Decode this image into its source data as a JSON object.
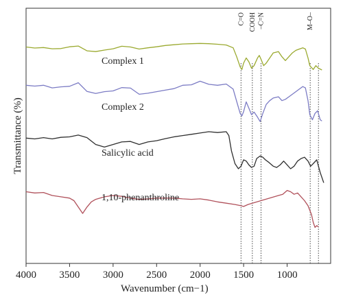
{
  "chart_data": {
    "type": "line",
    "title": "",
    "xlabel": "Wavenumber (cm−1)",
    "ylabel": "Transmittance (%)",
    "xlim": [
      4000,
      500
    ],
    "ylim": [
      0,
      100
    ],
    "x_reversed": true,
    "y_ticks_shown": false,
    "grid": false,
    "x_ticks": [
      {
        "value": 4000,
        "label": "4000"
      },
      {
        "value": 3500,
        "label": "3500"
      },
      {
        "value": 3000,
        "label": "3000"
      },
      {
        "value": 2500,
        "label": "2500"
      },
      {
        "value": 2000,
        "label": "2000"
      },
      {
        "value": 1500,
        "label": "1500"
      },
      {
        "value": 1000,
        "label": "1000"
      }
    ],
    "band_markers": [
      {
        "label": "C=O",
        "x": 1530
      },
      {
        "label": "COOH",
        "x": 1400
      },
      {
        "label": "–C=N",
        "x": 1300
      },
      {
        "label": "M–O–",
        "x": 735
      },
      {
        "label": "",
        "x": 640
      }
    ],
    "series": [
      {
        "name": "Complex 1",
        "color": "#9aa92e",
        "points": [
          [
            4000,
            84.8
          ],
          [
            3900,
            84.4
          ],
          [
            3800,
            84.6
          ],
          [
            3700,
            84.1
          ],
          [
            3600,
            84.2
          ],
          [
            3500,
            84.9
          ],
          [
            3400,
            85.2
          ],
          [
            3300,
            83.3
          ],
          [
            3200,
            83.0
          ],
          [
            3100,
            83.6
          ],
          [
            3000,
            84.1
          ],
          [
            2900,
            85.1
          ],
          [
            2800,
            84.8
          ],
          [
            2700,
            84.0
          ],
          [
            2600,
            84.5
          ],
          [
            2500,
            84.9
          ],
          [
            2400,
            85.4
          ],
          [
            2300,
            85.7
          ],
          [
            2200,
            86.0
          ],
          [
            2100,
            86.1
          ],
          [
            2000,
            86.2
          ],
          [
            1900,
            86.1
          ],
          [
            1800,
            85.9
          ],
          [
            1700,
            85.6
          ],
          [
            1620,
            84.5
          ],
          [
            1580,
            81.0
          ],
          [
            1540,
            77.0
          ],
          [
            1520,
            76.0
          ],
          [
            1500,
            78.5
          ],
          [
            1470,
            80.5
          ],
          [
            1440,
            79.0
          ],
          [
            1410,
            76.5
          ],
          [
            1380,
            77.5
          ],
          [
            1340,
            80.5
          ],
          [
            1320,
            81.5
          ],
          [
            1300,
            80.0
          ],
          [
            1270,
            77.5
          ],
          [
            1240,
            78.5
          ],
          [
            1200,
            80.5
          ],
          [
            1160,
            82.5
          ],
          [
            1100,
            83.0
          ],
          [
            1060,
            81.0
          ],
          [
            1020,
            79.5
          ],
          [
            980,
            81.0
          ],
          [
            940,
            82.5
          ],
          [
            900,
            83.5
          ],
          [
            860,
            84.0
          ],
          [
            820,
            84.5
          ],
          [
            790,
            84.0
          ],
          [
            760,
            80.5
          ],
          [
            740,
            77.5
          ],
          [
            700,
            76.0
          ],
          [
            670,
            77.5
          ],
          [
            640,
            76.5
          ],
          [
            600,
            75.8
          ]
        ]
      },
      {
        "name": "Complex 2",
        "color": "#7b7bc4",
        "points": [
          [
            4000,
            69.8
          ],
          [
            3900,
            69.5
          ],
          [
            3800,
            69.8
          ],
          [
            3700,
            68.8
          ],
          [
            3600,
            69.2
          ],
          [
            3500,
            69.4
          ],
          [
            3400,
            70.8
          ],
          [
            3300,
            67.4
          ],
          [
            3200,
            66.6
          ],
          [
            3100,
            67.3
          ],
          [
            3000,
            67.6
          ],
          [
            2900,
            68.9
          ],
          [
            2800,
            68.7
          ],
          [
            2700,
            66.3
          ],
          [
            2600,
            66.7
          ],
          [
            2500,
            67.3
          ],
          [
            2400,
            67.9
          ],
          [
            2300,
            68.5
          ],
          [
            2200,
            69.8
          ],
          [
            2100,
            70.0
          ],
          [
            2000,
            71.4
          ],
          [
            1900,
            70.2
          ],
          [
            1800,
            69.8
          ],
          [
            1700,
            70.3
          ],
          [
            1620,
            68.3
          ],
          [
            1580,
            63.5
          ],
          [
            1540,
            58.8
          ],
          [
            1520,
            57.8
          ],
          [
            1500,
            59.5
          ],
          [
            1470,
            63.3
          ],
          [
            1440,
            60.8
          ],
          [
            1410,
            58.3
          ],
          [
            1380,
            59.3
          ],
          [
            1340,
            57.3
          ],
          [
            1310,
            55.6
          ],
          [
            1280,
            58.8
          ],
          [
            1240,
            62.3
          ],
          [
            1200,
            63.8
          ],
          [
            1160,
            64.8
          ],
          [
            1100,
            65.3
          ],
          [
            1060,
            63.8
          ],
          [
            1020,
            64.3
          ],
          [
            980,
            65.3
          ],
          [
            940,
            66.3
          ],
          [
            900,
            67.3
          ],
          [
            860,
            68.3
          ],
          [
            820,
            69.3
          ],
          [
            790,
            68.8
          ],
          [
            760,
            63.8
          ],
          [
            740,
            58.3
          ],
          [
            710,
            56.3
          ],
          [
            680,
            58.8
          ],
          [
            650,
            59.8
          ],
          [
            620,
            56.3
          ],
          [
            600,
            55.8
          ]
        ]
      },
      {
        "name": "Salicylic acid",
        "color": "#2e2e2e",
        "points": [
          [
            4000,
            49.1
          ],
          [
            3900,
            48.8
          ],
          [
            3800,
            49.3
          ],
          [
            3700,
            48.8
          ],
          [
            3600,
            49.4
          ],
          [
            3500,
            49.6
          ],
          [
            3400,
            50.3
          ],
          [
            3300,
            49.3
          ],
          [
            3200,
            46.6
          ],
          [
            3100,
            45.6
          ],
          [
            3000,
            46.6
          ],
          [
            2900,
            47.6
          ],
          [
            2800,
            47.8
          ],
          [
            2700,
            46.6
          ],
          [
            2600,
            47.6
          ],
          [
            2500,
            48.1
          ],
          [
            2400,
            48.9
          ],
          [
            2300,
            49.6
          ],
          [
            2200,
            50.1
          ],
          [
            2100,
            50.6
          ],
          [
            2000,
            51.1
          ],
          [
            1900,
            51.6
          ],
          [
            1800,
            51.3
          ],
          [
            1700,
            51.6
          ],
          [
            1670,
            50.1
          ],
          [
            1640,
            44.1
          ],
          [
            1600,
            39.1
          ],
          [
            1560,
            37.1
          ],
          [
            1530,
            38.1
          ],
          [
            1500,
            40.6
          ],
          [
            1470,
            40.1
          ],
          [
            1440,
            38.6
          ],
          [
            1410,
            37.6
          ],
          [
            1380,
            38.1
          ],
          [
            1350,
            41.1
          ],
          [
            1310,
            42.1
          ],
          [
            1280,
            41.6
          ],
          [
            1250,
            40.6
          ],
          [
            1210,
            39.6
          ],
          [
            1160,
            38.1
          ],
          [
            1120,
            37.6
          ],
          [
            1080,
            38.6
          ],
          [
            1040,
            40.1
          ],
          [
            1000,
            38.6
          ],
          [
            960,
            37.1
          ],
          [
            920,
            38.1
          ],
          [
            880,
            40.1
          ],
          [
            840,
            41.1
          ],
          [
            800,
            41.6
          ],
          [
            760,
            40.1
          ],
          [
            730,
            38.1
          ],
          [
            700,
            39.1
          ],
          [
            660,
            40.6
          ],
          [
            620,
            35.6
          ],
          [
            580,
            31.6
          ]
        ]
      },
      {
        "name": "1,10-phenanthroline",
        "color": "#b0505a",
        "points": [
          [
            4000,
            28.1
          ],
          [
            3900,
            27.6
          ],
          [
            3800,
            27.8
          ],
          [
            3700,
            26.6
          ],
          [
            3600,
            26.1
          ],
          [
            3500,
            25.6
          ],
          [
            3450,
            24.6
          ],
          [
            3400,
            22.1
          ],
          [
            3350,
            19.6
          ],
          [
            3300,
            22.1
          ],
          [
            3250,
            24.1
          ],
          [
            3200,
            25.1
          ],
          [
            3100,
            26.1
          ],
          [
            3000,
            26.6
          ],
          [
            2900,
            26.3
          ],
          [
            2800,
            25.6
          ],
          [
            2700,
            25.1
          ],
          [
            2600,
            25.3
          ],
          [
            2500,
            25.6
          ],
          [
            2400,
            25.6
          ],
          [
            2300,
            25.6
          ],
          [
            2200,
            25.3
          ],
          [
            2100,
            25.1
          ],
          [
            2000,
            25.3
          ],
          [
            1900,
            24.8
          ],
          [
            1800,
            24.1
          ],
          [
            1700,
            23.6
          ],
          [
            1600,
            23.1
          ],
          [
            1530,
            22.6
          ],
          [
            1500,
            22.3
          ],
          [
            1450,
            23.1
          ],
          [
            1400,
            23.6
          ],
          [
            1300,
            24.6
          ],
          [
            1200,
            25.6
          ],
          [
            1100,
            26.6
          ],
          [
            1050,
            27.1
          ],
          [
            1000,
            28.6
          ],
          [
            960,
            28.1
          ],
          [
            920,
            27.1
          ],
          [
            880,
            27.6
          ],
          [
            840,
            26.1
          ],
          [
            800,
            24.6
          ],
          [
            760,
            22.6
          ],
          [
            720,
            19.1
          ],
          [
            700,
            16.1
          ],
          [
            680,
            14.1
          ],
          [
            660,
            14.8
          ],
          [
            640,
            14.3
          ]
        ]
      }
    ]
  }
}
